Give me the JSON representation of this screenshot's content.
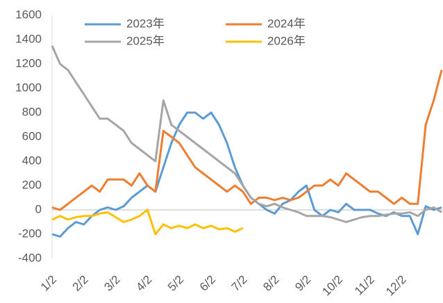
{
  "chart_data": {
    "type": "line",
    "categories": [
      "1/2",
      null,
      null,
      null,
      "2/2",
      null,
      null,
      null,
      "3/2",
      null,
      null,
      null,
      "4/2",
      null,
      null,
      null,
      "5/2",
      null,
      null,
      null,
      "6/2",
      null,
      null,
      null,
      "7/2",
      null,
      null,
      null,
      "8/2",
      null,
      null,
      null,
      "9/2",
      null,
      null,
      null,
      "10/2",
      null,
      null,
      null,
      "11/2",
      null,
      null,
      null,
      "12/2",
      null,
      null,
      null,
      null,
      null
    ],
    "series": [
      {
        "name": "2023年",
        "color": "#5b9bd5",
        "values": [
          -200,
          -220,
          -150,
          -100,
          -120,
          -50,
          0,
          20,
          0,
          30,
          100,
          150,
          200,
          150,
          350,
          550,
          700,
          800,
          800,
          750,
          800,
          700,
          550,
          350,
          200,
          100,
          50,
          0,
          -30,
          50,
          80,
          150,
          200,
          0,
          -50,
          0,
          -20,
          50,
          0,
          0,
          0,
          -30,
          -50,
          -20,
          -50,
          -50,
          -200,
          30,
          0,
          20
        ]
      },
      {
        "name": "2024年",
        "color": "#ed7d31",
        "values": [
          20,
          0,
          50,
          100,
          150,
          200,
          150,
          250,
          250,
          250,
          200,
          300,
          200,
          150,
          650,
          600,
          550,
          450,
          350,
          300,
          250,
          200,
          150,
          200,
          150,
          50,
          100,
          100,
          80,
          100,
          80,
          100,
          150,
          200,
          200,
          250,
          200,
          300,
          250,
          200,
          150,
          150,
          100,
          50,
          100,
          50,
          50,
          700,
          900,
          1150
        ]
      },
      {
        "name": "2025年",
        "color": "#a5a5a5",
        "values": [
          1350,
          1200,
          1150,
          1050,
          950,
          850,
          750,
          750,
          700,
          650,
          550,
          500,
          450,
          400,
          900,
          700,
          650,
          600,
          550,
          500,
          450,
          400,
          350,
          300,
          200,
          100,
          50,
          30,
          50,
          20,
          0,
          -20,
          -50,
          -50,
          -50,
          -60,
          -80,
          -100,
          -80,
          -60,
          -50,
          -50,
          -40,
          -30,
          -30,
          -20,
          -50,
          0,
          20,
          -20
        ]
      },
      {
        "name": "2026年",
        "color": "#ffc000",
        "values": [
          -80,
          -50,
          -80,
          -60,
          -50,
          -50,
          -30,
          -20,
          -60,
          -100,
          -80,
          -50,
          0,
          -200,
          -120,
          -150,
          -130,
          -150,
          -120,
          -150,
          -130,
          -160,
          -150,
          -180,
          -150,
          null,
          null,
          null,
          null,
          null,
          null,
          null,
          null,
          null,
          null,
          null,
          null,
          null,
          null,
          null,
          null,
          null,
          null,
          null,
          null,
          null,
          null,
          null,
          null,
          null
        ]
      }
    ],
    "ylim": [
      -400,
      1600
    ],
    "yticks": [
      -400,
      -200,
      0,
      200,
      400,
      600,
      800,
      1000,
      1200,
      1400,
      1600
    ],
    "legend": "top"
  }
}
